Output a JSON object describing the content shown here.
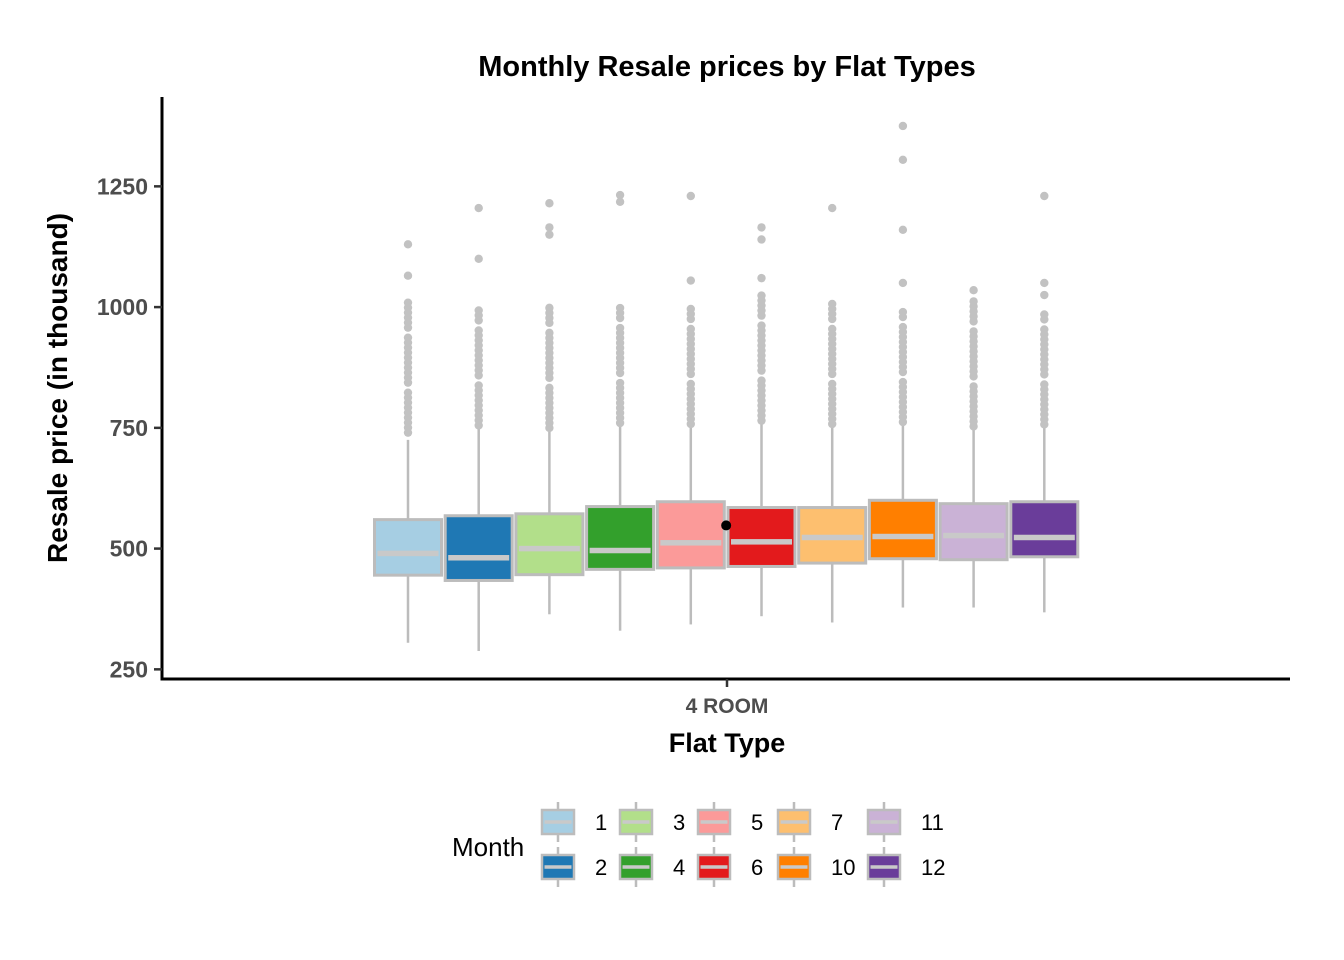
{
  "chart_data": {
    "type": "boxplot",
    "title": "Monthly Resale prices by Flat Types",
    "xlabel": "Flat Type",
    "ylabel": "Resale price (in thousand)",
    "category": "4 ROOM",
    "legend_title": "Month",
    "legend_position": "bottom",
    "grid": false,
    "ylim": [
      230,
      1435
    ],
    "yticks": [
      250,
      500,
      750,
      1000,
      1250
    ],
    "series": [
      {
        "month": "1",
        "color": "#A6CEE3",
        "q1": 445,
        "median": 490,
        "q3": 560,
        "whisker_low": 305,
        "whisker_high": 725,
        "outlier_range": [
          740,
          1010
        ],
        "outliers": [
          1065,
          1130
        ]
      },
      {
        "month": "2",
        "color": "#1F78B4",
        "q1": 434,
        "median": 481,
        "q3": 568,
        "whisker_low": 288,
        "whisker_high": 750,
        "outlier_range": [
          755,
          995
        ],
        "outliers": [
          1100,
          1205
        ]
      },
      {
        "month": "3",
        "color": "#B2DF8A",
        "q1": 446,
        "median": 500,
        "q3": 572,
        "whisker_low": 364,
        "whisker_high": 745,
        "outlier_range": [
          750,
          1000
        ],
        "outliers": [
          1150,
          1165,
          1215
        ]
      },
      {
        "month": "4",
        "color": "#33A02C",
        "q1": 457,
        "median": 496,
        "q3": 587,
        "whisker_low": 330,
        "whisker_high": 755,
        "outlier_range": [
          760,
          1005
        ],
        "outliers": [
          1218,
          1232
        ]
      },
      {
        "month": "5",
        "color": "#FB9A99",
        "q1": 460,
        "median": 512,
        "q3": 597,
        "whisker_low": 343,
        "whisker_high": 755,
        "outlier_range": [
          758,
          1000
        ],
        "outliers": [
          1055,
          1230
        ]
      },
      {
        "month": "6",
        "color": "#E31A1C",
        "q1": 463,
        "median": 514,
        "q3": 585,
        "whisker_low": 360,
        "whisker_high": 760,
        "outlier_range": [
          765,
          1025
        ],
        "outliers": [
          1060,
          1140,
          1165
        ]
      },
      {
        "month": "7",
        "color": "#FDBF6F",
        "q1": 470,
        "median": 523,
        "q3": 585,
        "whisker_low": 347,
        "whisker_high": 755,
        "outlier_range": [
          758,
          1010
        ],
        "outliers": [
          1205
        ]
      },
      {
        "month": "10",
        "color": "#FF7F00",
        "q1": 479,
        "median": 525,
        "q3": 600,
        "whisker_low": 378,
        "whisker_high": 760,
        "outlier_range": [
          762,
          1000
        ],
        "outliers": [
          1050,
          1160,
          1305,
          1375
        ]
      },
      {
        "month": "11",
        "color": "#CAB2D6",
        "q1": 477,
        "median": 527,
        "q3": 593,
        "whisker_low": 378,
        "whisker_high": 750,
        "outlier_range": [
          753,
          1015
        ],
        "outliers": [
          1035
        ]
      },
      {
        "month": "12",
        "color": "#6A3D9A",
        "q1": 483,
        "median": 523,
        "q3": 597,
        "whisker_low": 368,
        "whisker_high": 755,
        "outlier_range": [
          757,
          995
        ],
        "outliers": [
          1025,
          1050,
          1230
        ]
      }
    ],
    "annotation_point": {
      "category": "4 ROOM",
      "value": 548
    }
  },
  "colors": {
    "box_stroke": "#BCBCBC",
    "median_line": "#C9C9C9",
    "whisker": "#BCBCBC",
    "outlier": "#C2C2C2",
    "annotation_point": "#000000",
    "axis_line": "#000000",
    "tick_mark": "#333333",
    "tick_text": "#4D4D4D",
    "title_text": "#000000",
    "background": "#FFFFFF"
  }
}
